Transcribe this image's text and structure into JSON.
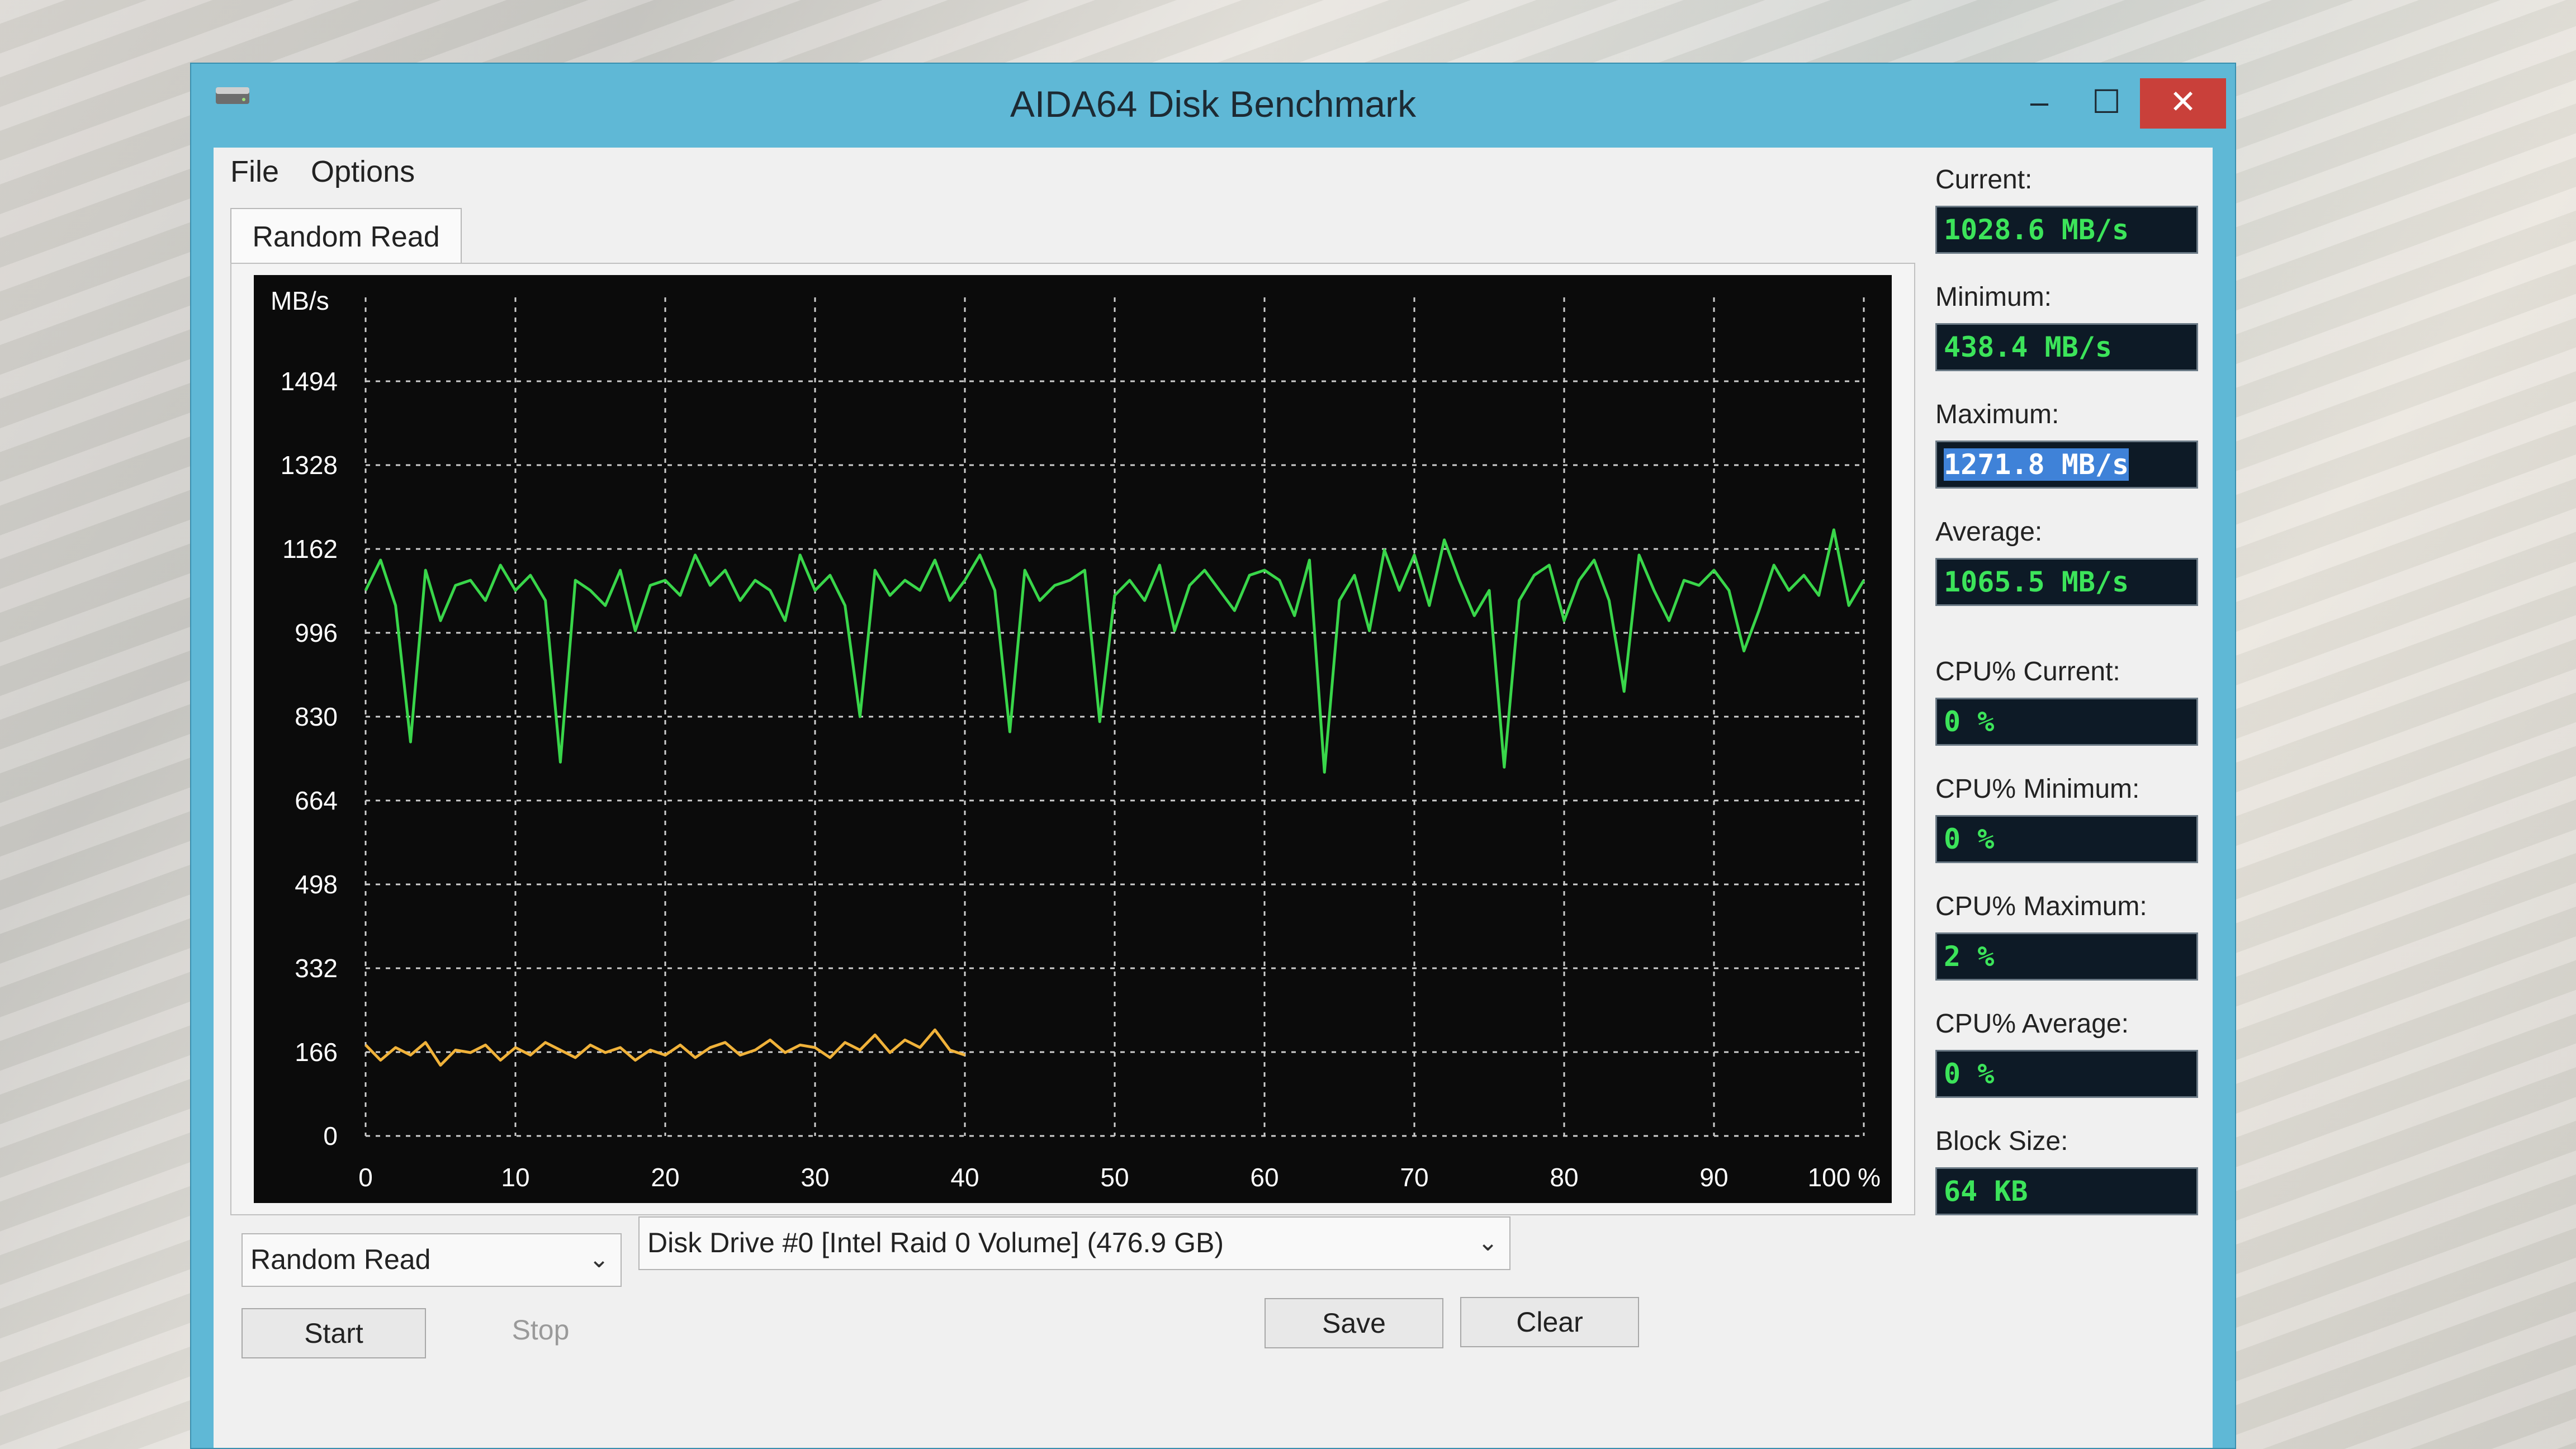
{
  "window": {
    "title": "AIDA64 Disk Benchmark",
    "minimize_glyph": "–",
    "maximize_glyph": "☐",
    "close_glyph": "✕"
  },
  "menu": {
    "file": "File",
    "options": "Options"
  },
  "tab": {
    "label": "Random Read"
  },
  "stats": {
    "current_label": "Current:",
    "current_value": "1028.6 MB/s",
    "minimum_label": "Minimum:",
    "minimum_value": "438.4 MB/s",
    "maximum_label": "Maximum:",
    "maximum_value": "1271.8 MB/s",
    "average_label": "Average:",
    "average_value": "1065.5 MB/s",
    "cpu_current_label": "CPU% Current:",
    "cpu_current_value": "0 %",
    "cpu_minimum_label": "CPU% Minimum:",
    "cpu_minimum_value": "0 %",
    "cpu_maximum_label": "CPU% Maximum:",
    "cpu_maximum_value": "2 %",
    "cpu_average_label": "CPU% Average:",
    "cpu_average_value": "0 %",
    "block_size_label": "Block Size:",
    "block_size_value": "64 KB"
  },
  "controls": {
    "test_select": "Random Read",
    "drive_select": "Disk Drive #0  [Intel   Raid 0 Volume]  (476.9 GB)",
    "start": "Start",
    "stop": "Stop",
    "save": "Save",
    "clear": "Clear"
  },
  "colors": {
    "read_line": "#39d64a",
    "cpu_line": "#f0b23a",
    "grid": "#cfcfcf",
    "value_text": "#3ce45a",
    "close_button": "#c9403a"
  },
  "icons": {
    "app": "disk-drive-icon",
    "dropdown": "chevron-down-icon"
  },
  "chart_data": {
    "type": "line",
    "ylabel": "MB/s",
    "y_ticks": [
      0,
      166,
      332,
      498,
      664,
      830,
      996,
      1162,
      1328,
      1494
    ],
    "x_ticks": [
      "0",
      "10",
      "20",
      "30",
      "40",
      "50",
      "60",
      "70",
      "80",
      "90",
      "100 %"
    ],
    "xlim": [
      0,
      100
    ],
    "ylim": [
      0,
      1660
    ],
    "grid": true,
    "series": [
      {
        "color": "#39d64a",
        "x": [
          0,
          1,
          2,
          3,
          4,
          5,
          6,
          7,
          8,
          9,
          10,
          11,
          12,
          13,
          14,
          15,
          16,
          17,
          18,
          19,
          20,
          21,
          22,
          23,
          24,
          25,
          26,
          27,
          28,
          29,
          30,
          31,
          32,
          33,
          34,
          35,
          36,
          37,
          38,
          39,
          40,
          41,
          42,
          43,
          44,
          45,
          46,
          47,
          48,
          49,
          50,
          51,
          52,
          53,
          54,
          55,
          56,
          57,
          58,
          59,
          60,
          61,
          62,
          63,
          64,
          65,
          66,
          67,
          68,
          69,
          70,
          71,
          72,
          73,
          74,
          75,
          76,
          77,
          78,
          79,
          80,
          81,
          82,
          83,
          84,
          85,
          86,
          87,
          88,
          89,
          90,
          91,
          92,
          93,
          94,
          95,
          96,
          97,
          98,
          99,
          100
        ],
        "values": [
          1080,
          1140,
          1050,
          780,
          1120,
          1020,
          1090,
          1100,
          1060,
          1130,
          1080,
          1110,
          1060,
          740,
          1100,
          1080,
          1050,
          1120,
          1000,
          1090,
          1100,
          1070,
          1150,
          1090,
          1120,
          1060,
          1100,
          1080,
          1020,
          1150,
          1080,
          1110,
          1050,
          830,
          1120,
          1070,
          1100,
          1080,
          1140,
          1060,
          1100,
          1150,
          1080,
          800,
          1120,
          1060,
          1090,
          1100,
          1120,
          820,
          1070,
          1100,
          1060,
          1130,
          1000,
          1090,
          1120,
          1080,
          1040,
          1110,
          1120,
          1100,
          1030,
          1140,
          720,
          1060,
          1110,
          1000,
          1160,
          1080,
          1150,
          1050,
          1180,
          1100,
          1030,
          1080,
          730,
          1060,
          1110,
          1130,
          1020,
          1100,
          1140,
          1060,
          880,
          1150,
          1080,
          1020,
          1100,
          1090,
          1120,
          1080,
          960,
          1040,
          1130,
          1080,
          1110,
          1070,
          1200,
          1050,
          1100
        ]
      },
      {
        "color": "#f0b23a",
        "x": [
          0,
          1,
          2,
          3,
          4,
          5,
          6,
          7,
          8,
          9,
          10,
          11,
          12,
          13,
          14,
          15,
          16,
          17,
          18,
          19,
          20,
          21,
          22,
          23,
          24,
          25,
          26,
          27,
          28,
          29,
          30,
          31,
          32,
          33,
          34,
          35,
          36,
          37,
          38,
          39,
          40
        ],
        "values": [
          180,
          150,
          175,
          160,
          185,
          140,
          170,
          165,
          180,
          150,
          175,
          160,
          185,
          170,
          155,
          180,
          165,
          175,
          150,
          170,
          160,
          180,
          155,
          175,
          185,
          160,
          170,
          190,
          165,
          180,
          175,
          155,
          185,
          170,
          200,
          165,
          190,
          175,
          210,
          170,
          160
        ]
      }
    ]
  }
}
